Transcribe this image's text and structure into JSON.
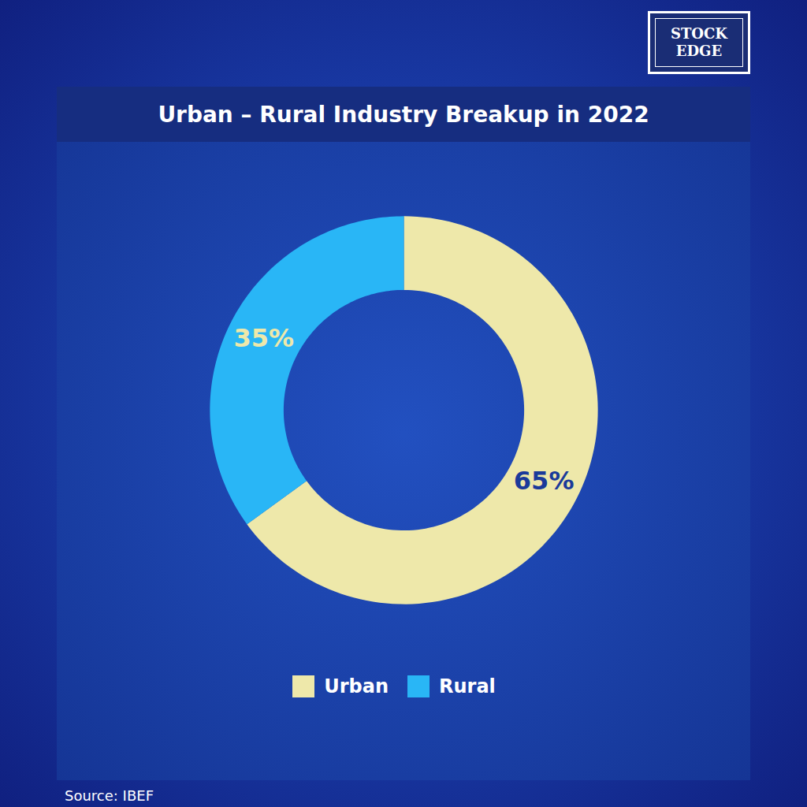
{
  "chart_data": {
    "type": "pie",
    "title": "Urban – Rural Industry Breakup in 2022",
    "categories": [
      "Urban",
      "Rural"
    ],
    "values": [
      65,
      35
    ],
    "value_labels": [
      "65%",
      "35%"
    ],
    "colors": [
      "#EEE8AA",
      "#29B6F6"
    ],
    "data_labels": true,
    "legend": "bottom",
    "annotations": [
      "Source: IBEF",
      "STOCK",
      "EDGE"
    ]
  }
}
